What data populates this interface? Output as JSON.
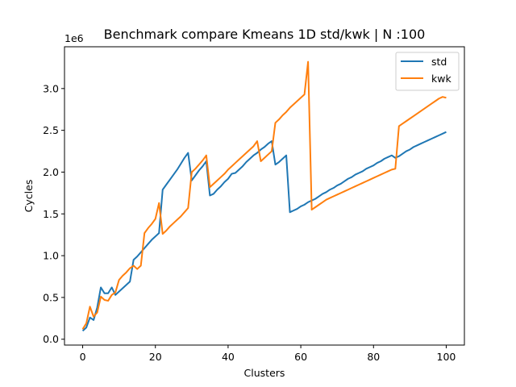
{
  "chart_data": {
    "type": "line",
    "title": "Benchmark compare Kmeans 1D std/kwk | N :100",
    "xlabel": "Clusters",
    "ylabel": "Cycles",
    "y_offset_label": "1e6",
    "xlim": [
      -5,
      105
    ],
    "ylim": [
      -0.07,
      3.5
    ],
    "x_ticks": [
      0,
      20,
      40,
      60,
      80,
      100
    ],
    "x_tick_labels": [
      "0",
      "20",
      "40",
      "60",
      "80",
      "100"
    ],
    "y_ticks": [
      0.0,
      0.5,
      1.0,
      1.5,
      2.0,
      2.5,
      3.0
    ],
    "y_tick_labels": [
      "0.0",
      "0.5",
      "1.0",
      "1.5",
      "2.0",
      "2.5",
      "3.0"
    ],
    "y_unit_multiplier": 1000000,
    "grid": false,
    "legend_position": "top-right",
    "series": [
      {
        "name": "std",
        "color": "#1f77b4",
        "points": [
          [
            0,
            0.1
          ],
          [
            1,
            0.14
          ],
          [
            2,
            0.26
          ],
          [
            3,
            0.23
          ],
          [
            4,
            0.38
          ],
          [
            5,
            0.62
          ],
          [
            6,
            0.55
          ],
          [
            7,
            0.55
          ],
          [
            8,
            0.62
          ],
          [
            9,
            0.53
          ],
          [
            10,
            0.57
          ],
          [
            11,
            0.61
          ],
          [
            12,
            0.65
          ],
          [
            13,
            0.69
          ],
          [
            14,
            0.95
          ],
          [
            15,
            0.99
          ],
          [
            16,
            1.04
          ],
          [
            17,
            1.09
          ],
          [
            18,
            1.14
          ],
          [
            19,
            1.19
          ],
          [
            20,
            1.23
          ],
          [
            21,
            1.27
          ],
          [
            22,
            1.79
          ],
          [
            23,
            1.85
          ],
          [
            24,
            1.91
          ],
          [
            25,
            1.97
          ],
          [
            26,
            2.03
          ],
          [
            27,
            2.1
          ],
          [
            28,
            2.17
          ],
          [
            29,
            2.23
          ],
          [
            30,
            1.9
          ],
          [
            31,
            1.96
          ],
          [
            32,
            2.02
          ],
          [
            33,
            2.07
          ],
          [
            34,
            2.13
          ],
          [
            35,
            1.72
          ],
          [
            36,
            1.74
          ],
          [
            37,
            1.79
          ],
          [
            38,
            1.83
          ],
          [
            39,
            1.88
          ],
          [
            40,
            1.92
          ],
          [
            41,
            1.98
          ],
          [
            42,
            1.99
          ],
          [
            43,
            2.03
          ],
          [
            44,
            2.07
          ],
          [
            45,
            2.12
          ],
          [
            46,
            2.16
          ],
          [
            47,
            2.2
          ],
          [
            48,
            2.23
          ],
          [
            49,
            2.27
          ],
          [
            50,
            2.3
          ],
          [
            51,
            2.34
          ],
          [
            52,
            2.37
          ],
          [
            53,
            2.09
          ],
          [
            54,
            2.12
          ],
          [
            55,
            2.16
          ],
          [
            56,
            2.2
          ],
          [
            57,
            1.52
          ],
          [
            58,
            1.54
          ],
          [
            59,
            1.56
          ],
          [
            60,
            1.59
          ],
          [
            61,
            1.61
          ],
          [
            62,
            1.64
          ],
          [
            63,
            1.66
          ],
          [
            64,
            1.68
          ],
          [
            65,
            1.71
          ],
          [
            66,
            1.74
          ],
          [
            67,
            1.76
          ],
          [
            68,
            1.79
          ],
          [
            69,
            1.81
          ],
          [
            70,
            1.84
          ],
          [
            71,
            1.86
          ],
          [
            72,
            1.89
          ],
          [
            73,
            1.92
          ],
          [
            74,
            1.94
          ],
          [
            75,
            1.97
          ],
          [
            76,
            1.99
          ],
          [
            77,
            2.01
          ],
          [
            78,
            2.04
          ],
          [
            79,
            2.06
          ],
          [
            80,
            2.08
          ],
          [
            81,
            2.11
          ],
          [
            82,
            2.13
          ],
          [
            83,
            2.16
          ],
          [
            84,
            2.18
          ],
          [
            85,
            2.2
          ],
          [
            86,
            2.17
          ],
          [
            87,
            2.19
          ],
          [
            88,
            2.22
          ],
          [
            89,
            2.25
          ],
          [
            90,
            2.27
          ],
          [
            91,
            2.3
          ],
          [
            92,
            2.32
          ],
          [
            93,
            2.34
          ],
          [
            94,
            2.36
          ],
          [
            95,
            2.38
          ],
          [
            96,
            2.4
          ],
          [
            97,
            2.42
          ],
          [
            98,
            2.44
          ],
          [
            99,
            2.46
          ],
          [
            100,
            2.48
          ]
        ]
      },
      {
        "name": "kwk",
        "color": "#ff7f0e",
        "points": [
          [
            0,
            0.12
          ],
          [
            1,
            0.19
          ],
          [
            2,
            0.39
          ],
          [
            3,
            0.27
          ],
          [
            4,
            0.32
          ],
          [
            5,
            0.51
          ],
          [
            6,
            0.47
          ],
          [
            7,
            0.46
          ],
          [
            8,
            0.53
          ],
          [
            9,
            0.56
          ],
          [
            10,
            0.71
          ],
          [
            11,
            0.76
          ],
          [
            12,
            0.8
          ],
          [
            13,
            0.85
          ],
          [
            14,
            0.88
          ],
          [
            15,
            0.84
          ],
          [
            16,
            0.88
          ],
          [
            17,
            1.27
          ],
          [
            18,
            1.33
          ],
          [
            19,
            1.38
          ],
          [
            20,
            1.44
          ],
          [
            21,
            1.63
          ],
          [
            22,
            1.26
          ],
          [
            23,
            1.3
          ],
          [
            24,
            1.35
          ],
          [
            25,
            1.39
          ],
          [
            26,
            1.43
          ],
          [
            27,
            1.47
          ],
          [
            28,
            1.52
          ],
          [
            29,
            1.57
          ],
          [
            30,
            2.0
          ],
          [
            31,
            2.04
          ],
          [
            32,
            2.09
          ],
          [
            33,
            2.14
          ],
          [
            34,
            2.2
          ],
          [
            35,
            1.82
          ],
          [
            36,
            1.86
          ],
          [
            37,
            1.9
          ],
          [
            38,
            1.94
          ],
          [
            39,
            1.98
          ],
          [
            40,
            2.03
          ],
          [
            41,
            2.07
          ],
          [
            42,
            2.11
          ],
          [
            43,
            2.15
          ],
          [
            44,
            2.19
          ],
          [
            45,
            2.23
          ],
          [
            46,
            2.27
          ],
          [
            47,
            2.31
          ],
          [
            48,
            2.37
          ],
          [
            49,
            2.13
          ],
          [
            50,
            2.17
          ],
          [
            51,
            2.21
          ],
          [
            52,
            2.25
          ],
          [
            53,
            2.59
          ],
          [
            54,
            2.63
          ],
          [
            55,
            2.68
          ],
          [
            56,
            2.72
          ],
          [
            57,
            2.77
          ],
          [
            58,
            2.81
          ],
          [
            59,
            2.85
          ],
          [
            60,
            2.89
          ],
          [
            61,
            2.93
          ],
          [
            62,
            3.32
          ],
          [
            63,
            1.55
          ],
          [
            64,
            1.58
          ],
          [
            65,
            1.61
          ],
          [
            66,
            1.64
          ],
          [
            67,
            1.67
          ],
          [
            68,
            1.69
          ],
          [
            69,
            1.71
          ],
          [
            70,
            1.73
          ],
          [
            71,
            1.75
          ],
          [
            72,
            1.77
          ],
          [
            73,
            1.79
          ],
          [
            74,
            1.81
          ],
          [
            75,
            1.83
          ],
          [
            76,
            1.85
          ],
          [
            77,
            1.87
          ],
          [
            78,
            1.89
          ],
          [
            79,
            1.91
          ],
          [
            80,
            1.93
          ],
          [
            81,
            1.95
          ],
          [
            82,
            1.97
          ],
          [
            83,
            1.99
          ],
          [
            84,
            2.01
          ],
          [
            85,
            2.03
          ],
          [
            86,
            2.04
          ],
          [
            87,
            2.55
          ],
          [
            88,
            2.58
          ],
          [
            89,
            2.61
          ],
          [
            90,
            2.64
          ],
          [
            91,
            2.67
          ],
          [
            92,
            2.7
          ],
          [
            93,
            2.73
          ],
          [
            94,
            2.76
          ],
          [
            95,
            2.79
          ],
          [
            96,
            2.82
          ],
          [
            97,
            2.85
          ],
          [
            98,
            2.88
          ],
          [
            99,
            2.9
          ],
          [
            100,
            2.89
          ]
        ]
      }
    ]
  }
}
